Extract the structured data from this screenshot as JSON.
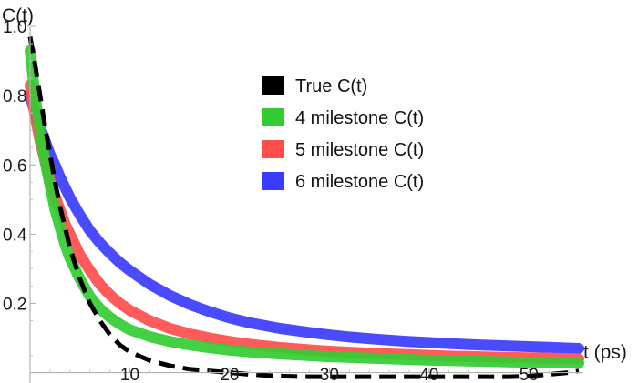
{
  "chart_data": {
    "type": "line",
    "xlabel": "t (ps)",
    "ylabel": "C(t)",
    "xlim": [
      0,
      55
    ],
    "ylim": [
      -0.03,
      1.05
    ],
    "x_ticks": [
      10,
      20,
      30,
      40,
      50
    ],
    "x_tick_labels": [
      "10",
      "20",
      "30",
      "40",
      "50"
    ],
    "y_ticks": [
      0.2,
      0.4,
      0.6,
      0.8,
      1.0
    ],
    "y_tick_labels": [
      "0.2",
      "0.4",
      "0.6",
      "0.8",
      "1.0"
    ],
    "grid": false,
    "legend_position": "top-right",
    "series": [
      {
        "name": "True C(t)",
        "color": "#000000",
        "style": "dashed",
        "x": [
          0,
          0.5,
          1,
          1.5,
          2,
          2.5,
          3,
          3.5,
          4,
          5,
          6,
          7,
          8,
          9,
          10,
          12,
          14,
          16,
          18,
          20,
          22,
          25,
          28,
          30,
          32,
          35,
          38,
          40,
          42,
          45,
          48,
          50,
          52,
          54,
          55
        ],
        "y": [
          0.97,
          0.89,
          0.8,
          0.71,
          0.63,
          0.55,
          0.48,
          0.42,
          0.36,
          0.27,
          0.2,
          0.15,
          0.11,
          0.08,
          0.06,
          0.035,
          0.02,
          0.01,
          0.005,
          0.0,
          -0.005,
          -0.01,
          -0.012,
          -0.012,
          -0.012,
          -0.012,
          -0.012,
          -0.012,
          -0.012,
          -0.012,
          -0.012,
          -0.01,
          -0.005,
          0.0,
          0.005
        ]
      },
      {
        "name": "4 milestone C(t)",
        "color": "#33cc33",
        "style": "solid",
        "x": [
          0,
          0.5,
          1,
          1.5,
          2,
          2.5,
          3,
          3.5,
          4,
          5,
          6,
          7,
          8,
          9,
          10,
          12,
          14,
          16,
          18,
          20,
          22,
          25,
          28,
          30,
          32,
          35,
          38,
          40,
          42,
          45,
          48,
          50,
          52,
          54,
          55
        ],
        "y": [
          0.93,
          0.8,
          0.7,
          0.61,
          0.54,
          0.47,
          0.42,
          0.37,
          0.33,
          0.27,
          0.22,
          0.185,
          0.16,
          0.14,
          0.124,
          0.104,
          0.09,
          0.08,
          0.072,
          0.065,
          0.06,
          0.054,
          0.049,
          0.046,
          0.044,
          0.041,
          0.038,
          0.036,
          0.035,
          0.033,
          0.031,
          0.03,
          0.029,
          0.028,
          0.027
        ]
      },
      {
        "name": "5 milestone C(t)",
        "color": "#ff4d4d",
        "style": "solid",
        "x": [
          0,
          0.5,
          1,
          1.5,
          2,
          2.5,
          3,
          3.5,
          4,
          5,
          6,
          7,
          8,
          9,
          10,
          12,
          14,
          16,
          18,
          20,
          22,
          25,
          28,
          30,
          32,
          35,
          38,
          40,
          42,
          45,
          48,
          50,
          52,
          54,
          55
        ],
        "y": [
          0.83,
          0.74,
          0.67,
          0.61,
          0.555,
          0.51,
          0.47,
          0.43,
          0.4,
          0.34,
          0.295,
          0.255,
          0.225,
          0.2,
          0.18,
          0.15,
          0.128,
          0.112,
          0.1,
          0.09,
          0.082,
          0.073,
          0.066,
          0.062,
          0.059,
          0.055,
          0.052,
          0.05,
          0.048,
          0.046,
          0.044,
          0.043,
          0.042,
          0.041,
          0.04
        ]
      },
      {
        "name": "6 milestone C(t)",
        "color": "#3b3bff",
        "style": "solid",
        "x": [
          0,
          0.5,
          1,
          1.5,
          2,
          2.5,
          3,
          3.5,
          4,
          5,
          6,
          7,
          8,
          9,
          10,
          12,
          14,
          16,
          18,
          20,
          22,
          25,
          28,
          30,
          32,
          35,
          38,
          40,
          42,
          45,
          48,
          50,
          52,
          54,
          55
        ],
        "y": [
          0.8,
          0.75,
          0.71,
          0.67,
          0.63,
          0.6,
          0.565,
          0.535,
          0.505,
          0.455,
          0.41,
          0.375,
          0.345,
          0.318,
          0.295,
          0.255,
          0.223,
          0.197,
          0.176,
          0.158,
          0.144,
          0.128,
          0.116,
          0.109,
          0.103,
          0.096,
          0.09,
          0.087,
          0.084,
          0.08,
          0.077,
          0.075,
          0.073,
          0.071,
          0.07
        ]
      }
    ]
  }
}
